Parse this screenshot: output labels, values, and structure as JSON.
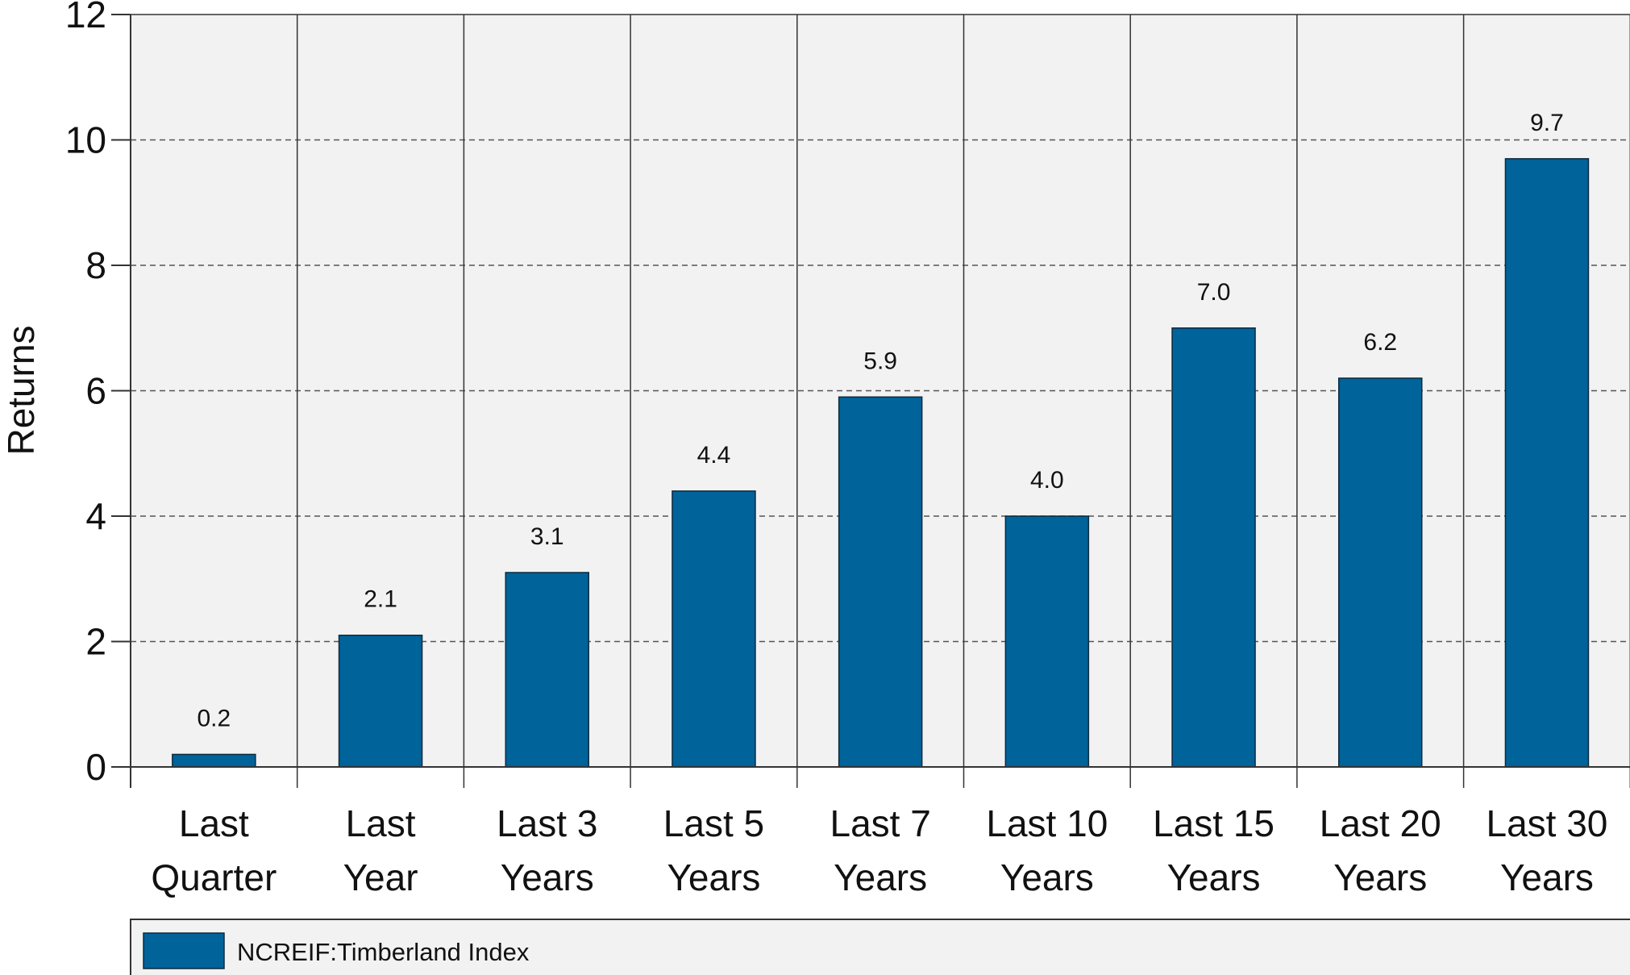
{
  "chart_data": {
    "type": "bar",
    "categories": [
      [
        "Last",
        "Quarter"
      ],
      [
        "Last",
        "Year"
      ],
      [
        "Last 3",
        "Years"
      ],
      [
        "Last 5",
        "Years"
      ],
      [
        "Last 7",
        "Years"
      ],
      [
        "Last 10",
        "Years"
      ],
      [
        "Last 15",
        "Years"
      ],
      [
        "Last 20",
        "Years"
      ],
      [
        "Last 30",
        "Years"
      ]
    ],
    "values": [
      0.2,
      2.1,
      3.1,
      4.4,
      5.9,
      4.0,
      7.0,
      6.2,
      9.7
    ],
    "data_labels": [
      "0.2",
      "2.1",
      "3.1",
      "4.4",
      "5.9",
      "4.0",
      "7.0",
      "6.2",
      "9.7"
    ],
    "series": [
      {
        "name": "NCREIF:Timberland Index",
        "color": "#00639a"
      }
    ],
    "ylabel": "Returns",
    "ylim": [
      0,
      12
    ],
    "yticks": [
      0,
      2,
      4,
      6,
      8,
      10,
      12
    ],
    "grid": "horizontal-dashed",
    "legend_position": "bottom-left",
    "colors": {
      "plot_bg": "#f2f2f2",
      "bar": "#00639a",
      "bar_edge": "#0c2a3e",
      "axis": "#333333"
    }
  }
}
